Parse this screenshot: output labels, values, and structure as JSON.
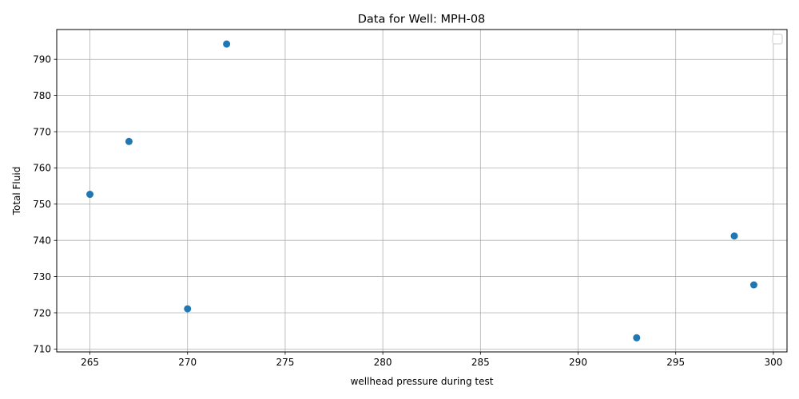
{
  "chart_data": {
    "type": "scatter",
    "title": "Data for Well: MPH-08",
    "xlabel": "wellhead pressure during test",
    "ylabel": "Total Fluid",
    "xlim": [
      263.3,
      300.7
    ],
    "ylim": [
      709.2,
      798.2
    ],
    "xticks": [
      265,
      270,
      275,
      280,
      285,
      290,
      295,
      300
    ],
    "yticks": [
      710,
      720,
      730,
      740,
      750,
      760,
      770,
      780,
      790
    ],
    "grid": true,
    "legend": "top-right",
    "color": "#1f77b4",
    "points": [
      {
        "x": 265,
        "y": 752.7
      },
      {
        "x": 267,
        "y": 767.3
      },
      {
        "x": 270,
        "y": 721.1
      },
      {
        "x": 272,
        "y": 794.2
      },
      {
        "x": 293,
        "y": 713.1
      },
      {
        "x": 298,
        "y": 741.2
      },
      {
        "x": 299,
        "y": 727.7
      }
    ]
  }
}
